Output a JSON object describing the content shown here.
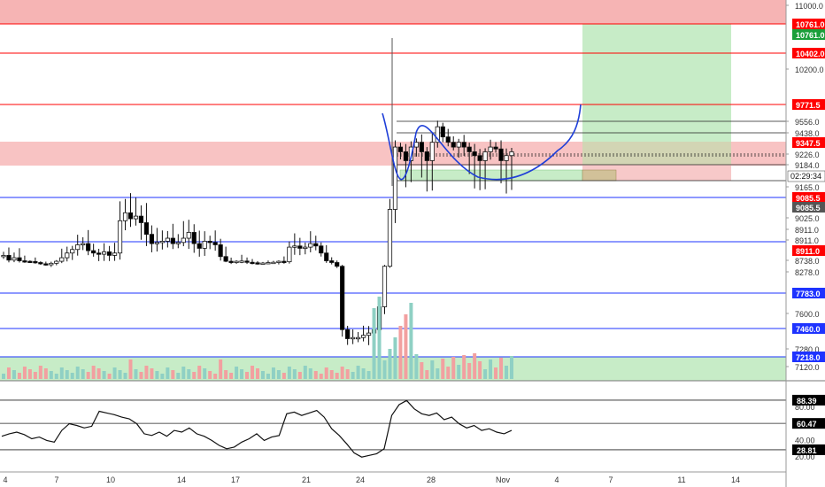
{
  "app": {
    "countdown": "02:29:34"
  },
  "colors": {
    "up": "#26a69a",
    "down": "#ef5350",
    "candle_up": "#ffffff",
    "candle_down": "#000000",
    "resistance_line": "#ff0000",
    "support_line": "#1e33ff",
    "red_zone": "#f6b4b4",
    "green_zone": "#c7ecc7",
    "cup_curve": "#1f3fd8",
    "axis_text": "#333333"
  },
  "chart_data": [
    {
      "type": "candlestick",
      "title": "",
      "y_axis": {
        "ticks": [
          "11000.0",
          "10200.0",
          "9556.0",
          "9438.0",
          "9226.0",
          "9184.0",
          "9165.0",
          "9025.0",
          "8911.0",
          "8911.0",
          "8738.0",
          "8278.0",
          "7600.0",
          "7280.0",
          "7120.0"
        ],
        "scale": "piecewise"
      },
      "x_axis": {
        "ticks": [
          "4",
          "7",
          "10",
          "14",
          "17",
          "21",
          "24",
          "28",
          "Nov",
          "4",
          "7",
          "11",
          "14"
        ]
      },
      "price_labels": [
        {
          "text": "10761.0",
          "bg": "#ff0000",
          "fg": "#ffffff"
        },
        {
          "text": "10761.0",
          "bg": "#1a9f3a",
          "fg": "#ffffff"
        },
        {
          "text": "10402.0",
          "bg": "#ff0000",
          "fg": "#ffffff"
        },
        {
          "text": "9771.5",
          "bg": "#ff0000",
          "fg": "#ffffff"
        },
        {
          "text": "9347.5",
          "bg": "#ff0000",
          "fg": "#ffffff"
        },
        {
          "text": "9085.5",
          "bg": "#ff0000",
          "fg": "#ffffff"
        },
        {
          "text": "9085.5",
          "bg": "#555555",
          "fg": "#ffffff"
        },
        {
          "text": "8911.0",
          "bg": "#ff0000",
          "fg": "#ffffff"
        },
        {
          "text": "7783.0",
          "bg": "#1e33ff",
          "fg": "#ffffff"
        },
        {
          "text": "7460.0",
          "bg": "#1e33ff",
          "fg": "#ffffff"
        },
        {
          "text": "7218.0",
          "bg": "#1e33ff",
          "fg": "#ffffff"
        }
      ],
      "resistance_levels": [
        10761.0,
        10402.0,
        9771.5
      ],
      "support_levels": [
        9085.5,
        8911.0,
        7783.0,
        7460.0,
        7218.0
      ],
      "zones": [
        {
          "name": "top-red",
          "color": "#f6b4b4"
        },
        {
          "name": "mid-red",
          "color": "#f6b4b4"
        },
        {
          "name": "green-target",
          "color": "#c7ecc7"
        }
      ],
      "series": [
        {
          "name": "",
          "ohlc_close_path": [
            8780,
            8740,
            8760,
            8720,
            8700,
            8690,
            8650,
            8600,
            8560,
            8620,
            8700,
            8760,
            8800,
            8830,
            8870,
            8880,
            8820,
            8800,
            8790,
            8810,
            8780,
            8800,
            9010,
            9040,
            9020,
            9030,
            9000,
            8940,
            8880,
            8890,
            8900,
            8920,
            8880,
            8890,
            8920,
            8950,
            8880,
            8840,
            8900,
            8890,
            8870,
            8770,
            8700,
            8680,
            8700,
            8710,
            8660,
            8640,
            8620,
            8630,
            8650,
            8660,
            8700,
            8680,
            8850,
            8860,
            8840,
            8850,
            8880,
            8860,
            8800,
            8720,
            8650,
            8500,
            7450,
            7370,
            7380,
            7380,
            7400,
            7420,
            7450,
            7660,
            8500,
            9050,
            9300,
            9250,
            9200,
            9300,
            9350,
            9250,
            9200,
            9350,
            9500,
            9400,
            9350,
            9300,
            9350,
            9300,
            9250,
            9220,
            9200,
            9250,
            9300,
            9280,
            9200,
            9220,
            9250
          ]
        }
      ]
    },
    {
      "type": "bar",
      "title": "",
      "series": [
        {
          "name": "",
          "values": []
        }
      ]
    },
    {
      "type": "line",
      "title": "",
      "y_axis": {
        "ticks": [
          "80.00",
          "60.00",
          "40.00",
          "20.00"
        ]
      },
      "value_labels": [
        {
          "text": "88.39",
          "bg": "#000000",
          "fg": "#ffffff"
        },
        {
          "text": "60.47",
          "bg": "#000000",
          "fg": "#ffffff"
        },
        {
          "text": "28.81",
          "bg": "#000000",
          "fg": "#ffffff"
        }
      ],
      "levels": [
        88.39,
        60.47,
        28.81
      ],
      "series": [
        {
          "name": "",
          "values": [
            45,
            48,
            50,
            47,
            42,
            44,
            40,
            38,
            52,
            60,
            58,
            55,
            57,
            75,
            73,
            71,
            68,
            66,
            60,
            48,
            46,
            50,
            45,
            52,
            50,
            55,
            48,
            45,
            40,
            34,
            30,
            32,
            38,
            42,
            48,
            40,
            44,
            46,
            72,
            74,
            70,
            73,
            76,
            68,
            54,
            46,
            36,
            25,
            20,
            22,
            24,
            30,
            70,
            83,
            88,
            78,
            72,
            70,
            73,
            65,
            68,
            60,
            55,
            58,
            52,
            54,
            50,
            48,
            52
          ]
        }
      ]
    }
  ]
}
